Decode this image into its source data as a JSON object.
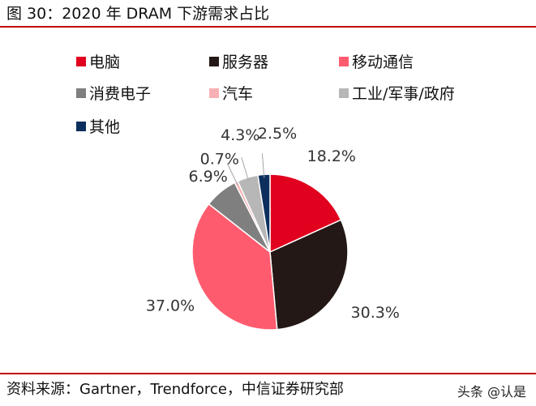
{
  "figure_title": "图 30：2020 年 DRAM 下游需求占比",
  "source_note": "资料来源：Gartner，Trendforce，中信证券研究部",
  "watermark": "头条 @认是",
  "chart_data": {
    "type": "pie",
    "title": "",
    "legend_position": "top",
    "categories": [
      "电脑",
      "服务器",
      "移动通信",
      "消费电子",
      "汽车",
      "工业/军事/政府",
      "其他"
    ],
    "values": [
      18.2,
      30.3,
      37.0,
      6.9,
      0.7,
      4.3,
      2.5
    ],
    "value_labels": [
      "18.2%",
      "30.3%",
      "37.0%",
      "6.9%",
      "0.7%",
      "4.3%",
      "2.5%"
    ],
    "colors": [
      "#e1001e",
      "#231815",
      "#ff5b6e",
      "#7f7f7f",
      "#f7b0b3",
      "#b7b7b7",
      "#0d2f5e"
    ],
    "start": "12 o'clock",
    "direction": "clockwise"
  }
}
